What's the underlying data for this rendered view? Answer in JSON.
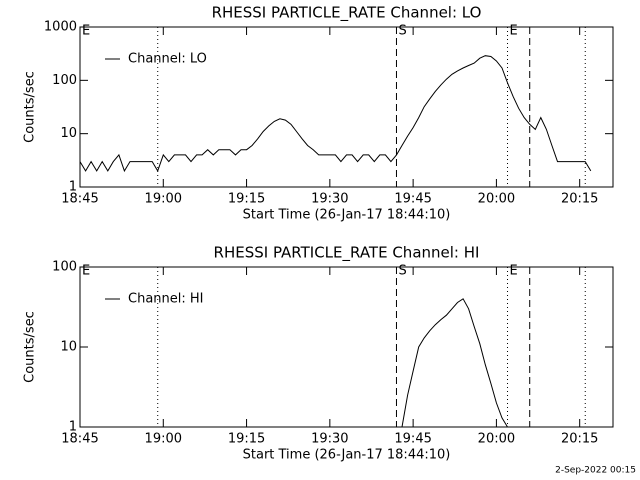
{
  "chart_data": [
    {
      "type": "line",
      "title": "RHESSI PARTICLE_RATE Channel: LO",
      "xlabel": "Start Time (26-Jan-17 18:44:10)",
      "ylabel": "Counts/sec",
      "x": [
        "18:45",
        "18:46",
        "18:47",
        "18:48",
        "18:49",
        "18:50",
        "18:51",
        "18:52",
        "18:53",
        "18:54",
        "18:55",
        "18:56",
        "18:57",
        "18:58",
        "18:59",
        "19:00",
        "19:01",
        "19:02",
        "19:03",
        "19:04",
        "19:05",
        "19:06",
        "19:07",
        "19:08",
        "19:09",
        "19:10",
        "19:11",
        "19:12",
        "19:13",
        "19:14",
        "19:15",
        "19:16",
        "19:17",
        "19:18",
        "19:19",
        "19:20",
        "19:21",
        "19:22",
        "19:23",
        "19:24",
        "19:25",
        "19:26",
        "19:27",
        "19:28",
        "19:29",
        "19:30",
        "19:31",
        "19:32",
        "19:33",
        "19:34",
        "19:35",
        "19:36",
        "19:37",
        "19:38",
        "19:39",
        "19:40",
        "19:41",
        "19:42",
        "19:43",
        "19:44",
        "19:45",
        "19:46",
        "19:47",
        "19:48",
        "19:49",
        "19:50",
        "19:51",
        "19:52",
        "19:53",
        "19:54",
        "19:55",
        "19:56",
        "19:57",
        "19:58",
        "19:59",
        "20:00",
        "20:01",
        "20:02",
        "20:03",
        "20:04",
        "20:05",
        "20:06",
        "20:07",
        "20:08",
        "20:09",
        "20:10",
        "20:11",
        "20:12",
        "20:13",
        "20:14",
        "20:15",
        "20:16",
        "20:17"
      ],
      "series": [
        {
          "name": "Channel: LO",
          "color": "#000000",
          "values": [
            3,
            2,
            3,
            2,
            3,
            2,
            3,
            4,
            2,
            3,
            3,
            3,
            3,
            3,
            2,
            4,
            3,
            4,
            4,
            4,
            3,
            4,
            4,
            5,
            4,
            5,
            5,
            5,
            4,
            5,
            5,
            6,
            8,
            11,
            14,
            17,
            19,
            18,
            15,
            11,
            8,
            6,
            5,
            4,
            4,
            4,
            4,
            3,
            4,
            4,
            3,
            4,
            4,
            3,
            4,
            4,
            3,
            4,
            6,
            9,
            13,
            20,
            32,
            45,
            62,
            82,
            105,
            130,
            150,
            170,
            190,
            210,
            260,
            290,
            280,
            230,
            170,
            90,
            50,
            30,
            20,
            15,
            12,
            20,
            12,
            6,
            3,
            3,
            3,
            3,
            3,
            3,
            2
          ]
        }
      ],
      "xlim": [
        "18:45",
        "20:21"
      ],
      "xticks": [
        "18:45",
        "19:00",
        "19:15",
        "19:30",
        "19:45",
        "20:00",
        "20:15"
      ],
      "ylim": [
        1,
        1000
      ],
      "yticks": [
        1,
        10,
        100,
        1000
      ],
      "log_y": true,
      "legend": "upper left",
      "vlines": [
        {
          "x": "18:59",
          "style": "dotted"
        },
        {
          "x": "19:42",
          "style": "dashed"
        },
        {
          "x": "20:02",
          "style": "dotted"
        },
        {
          "x": "20:06",
          "style": "dashed"
        },
        {
          "x": "20:16",
          "style": "dotted"
        }
      ],
      "annotations": [
        {
          "text": "E",
          "x": "18:45"
        },
        {
          "text": "S",
          "x": "19:42"
        },
        {
          "text": "E",
          "x": "20:02"
        }
      ]
    },
    {
      "type": "line",
      "title": "RHESSI PARTICLE_RATE Channel: HI",
      "xlabel": "Start Time (26-Jan-17 18:44:10)",
      "ylabel": "Counts/sec",
      "x": [
        "19:43",
        "19:44",
        "19:45",
        "19:46",
        "19:47",
        "19:48",
        "19:49",
        "19:50",
        "19:51",
        "19:52",
        "19:53",
        "19:54",
        "19:55",
        "19:56",
        "19:57",
        "19:58",
        "19:59",
        "20:00",
        "20:01",
        "20:02"
      ],
      "series": [
        {
          "name": "Channel: HI",
          "color": "#000000",
          "values": [
            1,
            2.5,
            5,
            10,
            13,
            16,
            19,
            22,
            25,
            30,
            36,
            40,
            30,
            18,
            11,
            6,
            3.5,
            2,
            1.3,
            1
          ]
        }
      ],
      "xlim": [
        "18:45",
        "20:21"
      ],
      "xticks": [
        "18:45",
        "19:00",
        "19:15",
        "19:30",
        "19:45",
        "20:00",
        "20:15"
      ],
      "ylim": [
        1,
        100
      ],
      "yticks": [
        1,
        10,
        100
      ],
      "log_y": true,
      "legend": "upper left",
      "vlines": [
        {
          "x": "18:59",
          "style": "dotted"
        },
        {
          "x": "19:42",
          "style": "dashed"
        },
        {
          "x": "20:02",
          "style": "dotted"
        },
        {
          "x": "20:06",
          "style": "dashed"
        },
        {
          "x": "20:16",
          "style": "dotted"
        }
      ],
      "annotations": [
        {
          "text": "E",
          "x": "18:45"
        },
        {
          "text": "S",
          "x": "19:42"
        },
        {
          "text": "E",
          "x": "20:02"
        }
      ]
    }
  ],
  "footer": "2-Sep-2022 00:15"
}
